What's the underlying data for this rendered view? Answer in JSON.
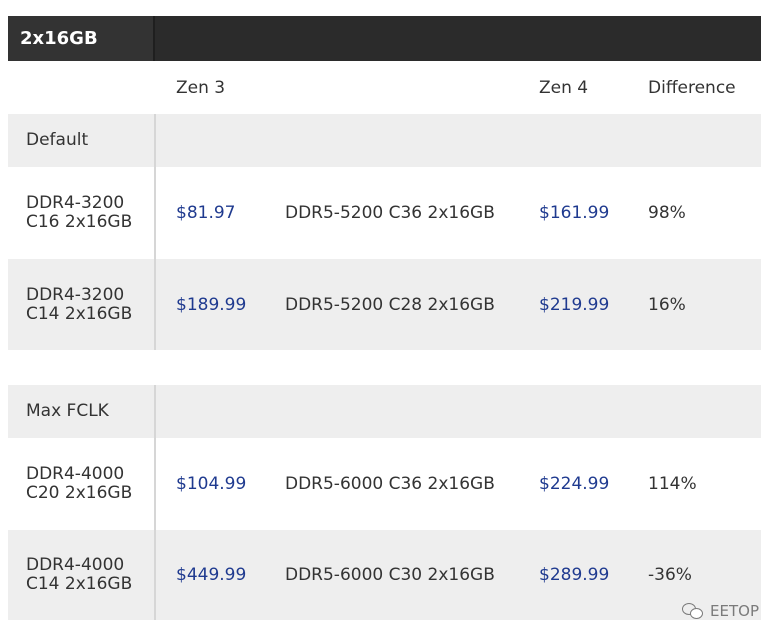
{
  "header": {
    "title": "2x16GB"
  },
  "columns": {
    "zen3": "Zen 3",
    "zen4": "Zen 4",
    "difference": "Difference"
  },
  "sections": [
    {
      "label": "Default",
      "rows": [
        {
          "zen3_mem": "DDR4-3200 C16 2x16GB",
          "zen3_price": "$81.97",
          "zen4_mem": "DDR5-5200 C36 2x16GB",
          "zen4_price": "$161.99",
          "diff": "98%"
        },
        {
          "zen3_mem": "DDR4-3200 C14 2x16GB",
          "zen3_price": "$189.99",
          "zen4_mem": "DDR5-5200 C28 2x16GB",
          "zen4_price": "$219.99",
          "diff": "16%"
        }
      ]
    },
    {
      "label": "Max FCLK",
      "rows": [
        {
          "zen3_mem": "DDR4-4000 C20 2x16GB",
          "zen3_price": "$104.99",
          "zen4_mem": "DDR5-6000 C36 2x16GB",
          "zen4_price": "$224.99",
          "diff": "114%"
        },
        {
          "zen3_mem": "DDR4-4000 C14 2x16GB",
          "zen3_price": "$449.99",
          "zen4_mem": "DDR5-6000 C30 2x16GB",
          "zen4_price": "$289.99",
          "diff": "-36%"
        }
      ]
    }
  ],
  "watermark": {
    "text": "EETOP",
    "icon": "wechat-icon"
  }
}
